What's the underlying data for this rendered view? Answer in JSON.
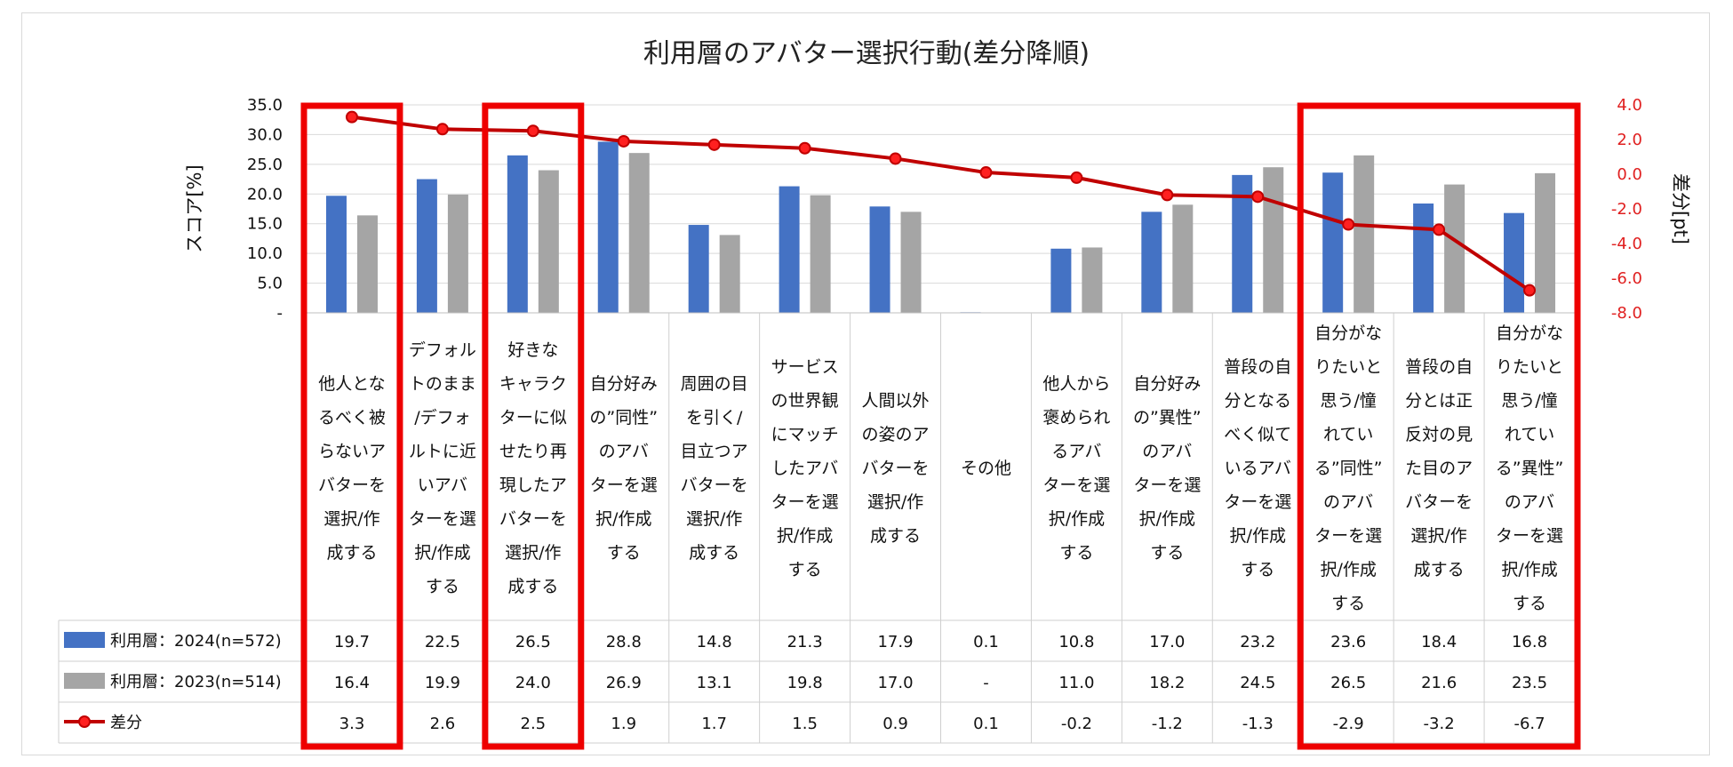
{
  "chart_data": {
    "type": "bar+line",
    "title": "利用層のアバター選択行動(差分降順)",
    "ylabel": "スコア[%]",
    "y2label": "差分[pt]",
    "ylim": [
      0,
      35
    ],
    "y2lim": [
      -8,
      4
    ],
    "y_ticks": [
      "35.0",
      "30.0",
      "25.0",
      "20.0",
      "15.0",
      "10.0",
      "5.0",
      "-"
    ],
    "y2_ticks": [
      "4.0",
      "2.0",
      "0.0",
      "-2.0",
      "-4.0",
      "-6.0",
      "-8.0"
    ],
    "colors": {
      "s2024": "#4472c4",
      "s2023": "#a5a5a5",
      "diff": "#c00000",
      "highlight": "#ee0000"
    },
    "categories": [
      [
        "他人とな",
        "るべく被",
        "らないア",
        "バターを",
        "選択/作",
        "成する"
      ],
      [
        "デフォル",
        "トのまま",
        "/デフォ",
        "ルトに近",
        "いアバ",
        "ターを選",
        "択/作成",
        "する"
      ],
      [
        "好きな",
        "キャラク",
        "ターに似",
        "せたり再",
        "現したア",
        "バターを",
        "選択/作",
        "成する"
      ],
      [
        "自分好み",
        "の”同性”",
        "のアバ",
        "ターを選",
        "択/作成",
        "する"
      ],
      [
        "周囲の目",
        "を引く/",
        "目立つア",
        "バターを",
        "選択/作",
        "成する"
      ],
      [
        "サービス",
        "の世界観",
        "にマッチ",
        "したアバ",
        "ターを選",
        "択/作成",
        "する"
      ],
      [
        "人間以外",
        "の姿のア",
        "バターを",
        "選択/作",
        "成する"
      ],
      [
        "その他"
      ],
      [
        "他人から",
        "褒められ",
        "るアバ",
        "ターを選",
        "択/作成",
        "する"
      ],
      [
        "自分好み",
        "の”異性”",
        "のアバ",
        "ターを選",
        "択/作成",
        "する"
      ],
      [
        "普段の自",
        "分となる",
        "べく似て",
        "いるアバ",
        "ターを選",
        "択/作成",
        "する"
      ],
      [
        "自分がな",
        "りたいと",
        "思う/憧",
        "れてい",
        "る”同性”",
        "のアバ",
        "ターを選",
        "択/作成",
        "する"
      ],
      [
        "普段の自",
        "分とは正",
        "反対の見",
        "た目のア",
        "バターを",
        "選択/作",
        "成する"
      ],
      [
        "自分がな",
        "りたいと",
        "思う/憧",
        "れてい",
        "る”異性”",
        "のアバ",
        "ターを選",
        "択/作成",
        "する"
      ]
    ],
    "series": [
      {
        "name": "利用層：2024(n=572)",
        "type": "bar",
        "values": [
          19.7,
          22.5,
          26.5,
          28.8,
          14.8,
          21.3,
          17.9,
          0.1,
          10.8,
          17.0,
          23.2,
          23.6,
          18.4,
          16.8
        ],
        "labels": [
          "19.7",
          "22.5",
          "26.5",
          "28.8",
          "14.8",
          "21.3",
          "17.9",
          "0.1",
          "10.8",
          "17.0",
          "23.2",
          "23.6",
          "18.4",
          "16.8"
        ]
      },
      {
        "name": "利用層：2023(n=514)",
        "type": "bar",
        "values": [
          16.4,
          19.9,
          24.0,
          26.9,
          13.1,
          19.8,
          17.0,
          0,
          11.0,
          18.2,
          24.5,
          26.5,
          21.6,
          23.5
        ],
        "labels": [
          "16.4",
          "19.9",
          "24.0",
          "26.9",
          "13.1",
          "19.8",
          "17.0",
          "-",
          "11.0",
          "18.2",
          "24.5",
          "26.5",
          "21.6",
          "23.5"
        ]
      },
      {
        "name": "差分",
        "type": "line",
        "axis": "right",
        "values": [
          3.3,
          2.6,
          2.5,
          1.9,
          1.7,
          1.5,
          0.9,
          0.1,
          -0.2,
          -1.2,
          -1.3,
          -2.9,
          -3.2,
          -6.7
        ],
        "labels": [
          "3.3",
          "2.6",
          "2.5",
          "1.9",
          "1.7",
          "1.5",
          "0.9",
          "0.1",
          "-0.2",
          "-1.2",
          "-1.3",
          "-2.9",
          "-3.2",
          "-6.7"
        ]
      }
    ],
    "highlighted_categories": [
      [
        0
      ],
      [
        2
      ],
      [
        11,
        12,
        13
      ]
    ]
  }
}
